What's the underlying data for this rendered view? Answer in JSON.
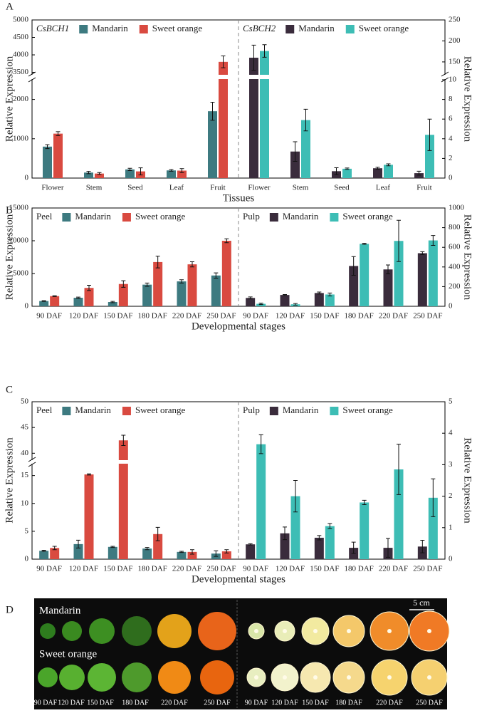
{
  "panel_labels": [
    "A",
    "B",
    "C",
    "D"
  ],
  "chart_data": [
    {
      "type": "bar",
      "title": "CsBCH1",
      "title_italic": true,
      "yaxis": "left",
      "ylabel": "Relative Expression",
      "xlabel": "Tissues",
      "categories": [
        "Flower",
        "Stem",
        "Seed",
        "Leaf",
        "Fruit"
      ],
      "series": [
        {
          "name": "Mandarin",
          "color": "#3d7a80",
          "values": [
            800,
            140,
            220,
            195,
            1700
          ],
          "errors": [
            50,
            30,
            30,
            20,
            230
          ]
        },
        {
          "name": "Sweet orange",
          "color": "#d94a40",
          "values": [
            1130,
            115,
            170,
            190,
            3800
          ],
          "errors": [
            50,
            25,
            90,
            50,
            170
          ]
        }
      ],
      "ylim": [
        0,
        5000
      ],
      "ybreak": [
        2500,
        3450
      ],
      "yticks": [
        0,
        1000,
        2000,
        3500,
        4000,
        4500,
        5000
      ]
    },
    {
      "type": "bar",
      "title": "CsBCH2",
      "title_italic": true,
      "yaxis": "right",
      "ylabel": "Relative Expression",
      "categories": [
        "Flower",
        "Stem",
        "Seed",
        "Leaf",
        "Fruit"
      ],
      "series": [
        {
          "name": "Mandarin",
          "color": "#3a2c3c",
          "values": [
            160,
            2.7,
            0.7,
            1.0,
            0.5
          ],
          "errors": [
            30,
            1.0,
            0.35,
            0.1,
            0.2
          ]
        },
        {
          "name": "Sweet orange",
          "color": "#3dbdb5",
          "values": [
            176,
            5.9,
            0.95,
            1.35,
            4.4
          ],
          "errors": [
            15,
            1.1,
            0.07,
            0.1,
            1.6
          ]
        }
      ],
      "ylim": [
        0,
        250
      ],
      "ybreak": [
        10,
        121
      ],
      "yticks": [
        0,
        2,
        4,
        6,
        8,
        10,
        150,
        200,
        250
      ]
    },
    {
      "type": "bar",
      "title": "Peel",
      "title_italic": false,
      "yaxis": "left",
      "ylabel": "Relative Expression",
      "xlabel": "Developmental stages",
      "categories": [
        "90 DAF",
        "120 DAF",
        "150 DAF",
        "180 DAF",
        "220 DAF",
        "250 DAF"
      ],
      "series": [
        {
          "name": "Mandarin",
          "color": "#3d7a80",
          "values": [
            800,
            1300,
            650,
            3300,
            3800,
            4700
          ],
          "errors": [
            50,
            100,
            100,
            250,
            250,
            400
          ]
        },
        {
          "name": "Sweet orange",
          "color": "#d94a40",
          "values": [
            1550,
            2800,
            3400,
            6750,
            6400,
            10000
          ],
          "errors": [
            50,
            400,
            500,
            900,
            400,
            300
          ]
        }
      ],
      "ylim": [
        0,
        15000
      ],
      "yticks": [
        0,
        5000,
        10000,
        15000
      ]
    },
    {
      "type": "bar",
      "title": "Pulp",
      "title_italic": false,
      "yaxis": "right",
      "ylabel": "Relative Expression",
      "categories": [
        "90 DAF",
        "120 DAF",
        "150 DAF",
        "180 DAF",
        "220 DAF",
        "250 DAF"
      ],
      "series": [
        {
          "name": "Mandarin",
          "color": "#3a2c3c",
          "values": [
            85,
            115,
            135,
            410,
            375,
            540
          ],
          "errors": [
            10,
            5,
            10,
            95,
            45,
            15
          ]
        },
        {
          "name": "Sweet orange",
          "color": "#3dbdb5",
          "values": [
            25,
            20,
            120,
            635,
            665,
            670
          ],
          "errors": [
            8,
            8,
            15,
            5,
            210,
            50
          ]
        }
      ],
      "ylim": [
        0,
        1000
      ],
      "yticks": [
        0,
        200,
        400,
        600,
        800,
        1000
      ]
    },
    {
      "type": "bar",
      "title": "Peel",
      "title_italic": false,
      "yaxis": "left",
      "ylabel": "Relative Expression",
      "xlabel": "Developmental stages",
      "categories": [
        "90 DAF",
        "120 DAF",
        "150 DAF",
        "180 DAF",
        "220 DAF",
        "250 DAF"
      ],
      "series": [
        {
          "name": "Mandarin",
          "color": "#3d7a80",
          "values": [
            1.5,
            2.7,
            2.2,
            1.9,
            1.3,
            1.0
          ],
          "errors": [
            0.1,
            0.7,
            0.1,
            0.2,
            0.1,
            0.5
          ]
        },
        {
          "name": "Sweet orange",
          "color": "#d94a40",
          "values": [
            2.0,
            15.2,
            42.5,
            4.5,
            1.3,
            1.4
          ],
          "errors": [
            0.3,
            0.1,
            1.0,
            1.2,
            0.4,
            0.3
          ]
        }
      ],
      "ylim": [
        0,
        50
      ],
      "ybreak": [
        17,
        38.8
      ],
      "yticks": [
        0,
        5,
        10,
        15,
        40,
        45,
        50
      ]
    },
    {
      "type": "bar",
      "title": "Pulp",
      "title_italic": false,
      "yaxis": "right",
      "ylabel": "Relative Expression",
      "categories": [
        "90 DAF",
        "120 DAF",
        "150 DAF",
        "180 DAF",
        "220 DAF",
        "250 DAF"
      ],
      "series": [
        {
          "name": "Mandarin",
          "color": "#3a2c3c",
          "values": [
            0.47,
            0.82,
            0.68,
            0.36,
            0.36,
            0.4
          ],
          "errors": [
            0.02,
            0.2,
            0.07,
            0.18,
            0.3,
            0.2
          ]
        },
        {
          "name": "Sweet orange",
          "color": "#3dbdb5",
          "values": [
            3.65,
            2.0,
            1.05,
            1.8,
            2.85,
            1.95
          ],
          "errors": [
            0.3,
            0.5,
            0.08,
            0.07,
            0.8,
            0.6
          ]
        }
      ],
      "ylim": [
        0,
        5
      ],
      "yticks": [
        0,
        1,
        2,
        3,
        4,
        5
      ]
    }
  ],
  "photo": {
    "rows": [
      "Mandarin",
      "Sweet orange"
    ],
    "scale_bar": "5 cm",
    "stages_left": [
      "90 DAF",
      "120 DAF",
      "150 DAF",
      "180 DAF",
      "220 DAF",
      "250 DAF"
    ],
    "stages_right": [
      "90 DAF",
      "120 DAF",
      "150 DAF",
      "180 DAF",
      "220 DAF",
      "250 DAF"
    ]
  }
}
